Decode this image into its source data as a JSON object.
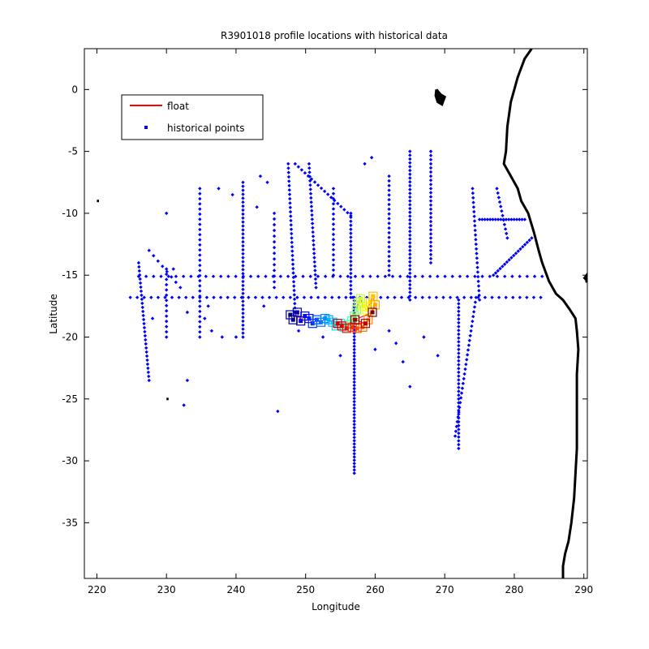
{
  "chart_data": {
    "type": "scatter",
    "title": "R3901018 profile locations with historical data",
    "xlabel": "Longitude",
    "ylabel": "Latitude",
    "xlim": [
      218.2,
      290.5
    ],
    "ylim": [
      -39.5,
      3.3
    ],
    "xticks": [
      220,
      230,
      240,
      250,
      260,
      270,
      280,
      290
    ],
    "yticks": [
      0,
      -5,
      -10,
      -15,
      -20,
      -25,
      -30,
      -35
    ],
    "grid": false,
    "legend": {
      "placement": "top-left",
      "entries": [
        "float",
        "historical points"
      ]
    },
    "colors": {
      "float_line": "#ff0000",
      "historical": "#0000ff",
      "coast": "#000000"
    },
    "series": [
      {
        "name": "historical points",
        "segments": [
          {
            "from": [
              224.8,
              -16.8
            ],
            "to": [
              283.8,
              -16.8
            ],
            "n": 60
          },
          {
            "from": [
              226.0,
              -15.1
            ],
            "to": [
              284.0,
              -15.1
            ],
            "n": 55
          },
          {
            "from": [
              257.0,
              -16.8
            ],
            "to": [
              257.0,
              -31.0
            ],
            "n": 55
          },
          {
            "from": [
              256.5,
              -16.8
            ],
            "to": [
              256.5,
              -10.0
            ],
            "n": 22
          },
          {
            "from": [
              248.5,
              -6.0
            ],
            "to": [
              256.5,
              -10.2
            ],
            "n": 18
          },
          {
            "from": [
              272.0,
              -17.0
            ],
            "to": [
              272.0,
              -29.0
            ],
            "n": 40
          },
          {
            "from": [
              274.5,
              -16.8
            ],
            "to": [
              271.5,
              -28.0
            ],
            "n": 30
          },
          {
            "from": [
              226.0,
              -14.0
            ],
            "to": [
              227.5,
              -23.5
            ],
            "n": 30
          },
          {
            "from": [
              241.0,
              -7.5
            ],
            "to": [
              241.0,
              -20.0
            ],
            "n": 40
          },
          {
            "from": [
              234.8,
              -8.0
            ],
            "to": [
              234.8,
              -20.0
            ],
            "n": 30
          },
          {
            "from": [
              230.0,
              -14.5
            ],
            "to": [
              230.0,
              -20.0
            ],
            "n": 14
          },
          {
            "from": [
              247.5,
              -6.0
            ],
            "to": [
              248.5,
              -18.0
            ],
            "n": 35
          },
          {
            "from": [
              250.5,
              -6.0
            ],
            "to": [
              251.5,
              -16.0
            ],
            "n": 30
          },
          {
            "from": [
              254.0,
              -8.0
            ],
            "to": [
              254.0,
              -15.0
            ],
            "n": 18
          },
          {
            "from": [
              265.0,
              -5.0
            ],
            "to": [
              265.0,
              -17.0
            ],
            "n": 40
          },
          {
            "from": [
              268.0,
              -5.0
            ],
            "to": [
              268.0,
              -14.0
            ],
            "n": 28
          },
          {
            "from": [
              262.0,
              -7.0
            ],
            "to": [
              262.0,
              -15.0
            ],
            "n": 22
          },
          {
            "from": [
              277.5,
              -8.0
            ],
            "to": [
              279.0,
              -12.0
            ],
            "n": 12
          },
          {
            "from": [
              275.0,
              -10.5
            ],
            "to": [
              281.5,
              -10.5
            ],
            "n": 18
          },
          {
            "from": [
              277.0,
              -15.0
            ],
            "to": [
              282.5,
              -12.0
            ],
            "n": 18
          },
          {
            "from": [
              274.0,
              -8.0
            ],
            "to": [
              275.0,
              -17.0
            ],
            "n": 25
          },
          {
            "from": [
              245.5,
              -10.0
            ],
            "to": [
              245.5,
              -16.0
            ],
            "n": 14
          },
          {
            "from": [
              227.5,
              -13.0
            ],
            "to": [
              232.0,
              -16.0
            ],
            "n": 8
          }
        ],
        "points": [
          [
            246.0,
            -26.0
          ],
          [
            232.5,
            -25.5
          ],
          [
            233.0,
            -23.5
          ],
          [
            235.5,
            -18.5
          ],
          [
            238.0,
            -20.0
          ],
          [
            240.0,
            -20.0
          ],
          [
            230.0,
            -10.0
          ],
          [
            244.5,
            -7.5
          ],
          [
            243.5,
            -7.0
          ],
          [
            237.5,
            -8.0
          ],
          [
            239.5,
            -8.5
          ],
          [
            236.5,
            -19.5
          ],
          [
            231.0,
            -14.5
          ],
          [
            228.0,
            -18.5
          ],
          [
            260.0,
            -21.0
          ],
          [
            263.0,
            -20.5
          ],
          [
            262.0,
            -19.5
          ],
          [
            264.0,
            -22.0
          ],
          [
            267.0,
            -20.0
          ],
          [
            269.0,
            -21.5
          ],
          [
            265.0,
            -24.0
          ],
          [
            243.0,
            -9.5
          ],
          [
            236.0,
            -17.5
          ],
          [
            233.0,
            -18.0
          ],
          [
            252.5,
            -20.0
          ],
          [
            249.0,
            -19.5
          ],
          [
            255.0,
            -21.5
          ],
          [
            258.5,
            -6.0
          ],
          [
            259.5,
            -5.5
          ],
          [
            244.0,
            -17.5
          ]
        ]
      },
      {
        "name": "float",
        "points": [
          [
            247.8,
            -18.2
          ],
          [
            248.2,
            -18.6
          ],
          [
            248.8,
            -18.0
          ],
          [
            249.3,
            -18.7
          ],
          [
            249.9,
            -18.3
          ],
          [
            250.5,
            -18.5
          ],
          [
            251.0,
            -18.9
          ],
          [
            251.6,
            -18.6
          ],
          [
            252.2,
            -18.8
          ],
          [
            252.8,
            -18.5
          ],
          [
            253.3,
            -18.6
          ],
          [
            253.9,
            -18.8
          ],
          [
            254.4,
            -19.1
          ],
          [
            255.0,
            -18.9
          ],
          [
            255.5,
            -19.2
          ],
          [
            256.1,
            -19.0
          ],
          [
            256.6,
            -18.7
          ],
          [
            257.0,
            -18.3
          ],
          [
            257.3,
            -17.8
          ],
          [
            257.6,
            -17.2
          ],
          [
            257.9,
            -16.9
          ],
          [
            258.3,
            -17.5
          ],
          [
            258.8,
            -17.8
          ],
          [
            259.3,
            -17.2
          ],
          [
            259.7,
            -16.7
          ],
          [
            260.0,
            -17.4
          ],
          [
            259.0,
            -18.6
          ],
          [
            258.2,
            -19.2
          ],
          [
            257.4,
            -19.3
          ],
          [
            256.7,
            -19.2
          ],
          [
            255.9,
            -19.3
          ],
          [
            255.2,
            -19.1
          ],
          [
            254.6,
            -18.9
          ],
          [
            258.6,
            -18.9
          ],
          [
            257.1,
            -18.6
          ],
          [
            259.6,
            -18.0
          ]
        ]
      }
    ],
    "coastline": [
      [
        282.5,
        3.3
      ],
      [
        281.5,
        2.5
      ],
      [
        280.5,
        1.0
      ],
      [
        279.5,
        -1.0
      ],
      [
        279.0,
        -3.0
      ],
      [
        278.8,
        -5.0
      ],
      [
        278.5,
        -6.0
      ],
      [
        279.5,
        -7.0
      ],
      [
        280.5,
        -8.0
      ],
      [
        281.0,
        -9.0
      ],
      [
        282.0,
        -10.0
      ],
      [
        282.8,
        -11.5
      ],
      [
        283.5,
        -13.0
      ],
      [
        284.0,
        -14.0
      ],
      [
        285.0,
        -15.5
      ],
      [
        286.0,
        -16.5
      ],
      [
        287.0,
        -17.0
      ],
      [
        288.0,
        -17.8
      ],
      [
        288.8,
        -18.5
      ],
      [
        289.0,
        -19.5
      ],
      [
        289.2,
        -21.0
      ],
      [
        289.0,
        -23.0
      ],
      [
        289.0,
        -25.0
      ],
      [
        289.0,
        -27.0
      ],
      [
        289.0,
        -29.0
      ],
      [
        288.8,
        -31.0
      ],
      [
        288.6,
        -33.0
      ],
      [
        288.2,
        -35.0
      ],
      [
        287.8,
        -36.5
      ],
      [
        287.3,
        -37.5
      ],
      [
        287.0,
        -38.5
      ],
      [
        287.0,
        -39.5
      ]
    ],
    "islands": [
      [
        [
          268.8,
          0.0
        ],
        [
          269.4,
          -0.4
        ],
        [
          270.0,
          -0.6
        ],
        [
          269.6,
          -1.2
        ],
        [
          269.0,
          -1.0
        ],
        [
          268.7,
          -0.5
        ],
        [
          268.8,
          0.0
        ]
      ],
      [
        [
          220.0,
          -9.0
        ],
        [
          220.3,
          -9.0
        ]
      ],
      [
        [
          230.0,
          -25.0
        ],
        [
          230.3,
          -25.0
        ]
      ],
      [
        [
          290.0,
          -15.3
        ],
        [
          290.4,
          -15.0
        ],
        [
          290.4,
          -15.6
        ]
      ]
    ]
  }
}
